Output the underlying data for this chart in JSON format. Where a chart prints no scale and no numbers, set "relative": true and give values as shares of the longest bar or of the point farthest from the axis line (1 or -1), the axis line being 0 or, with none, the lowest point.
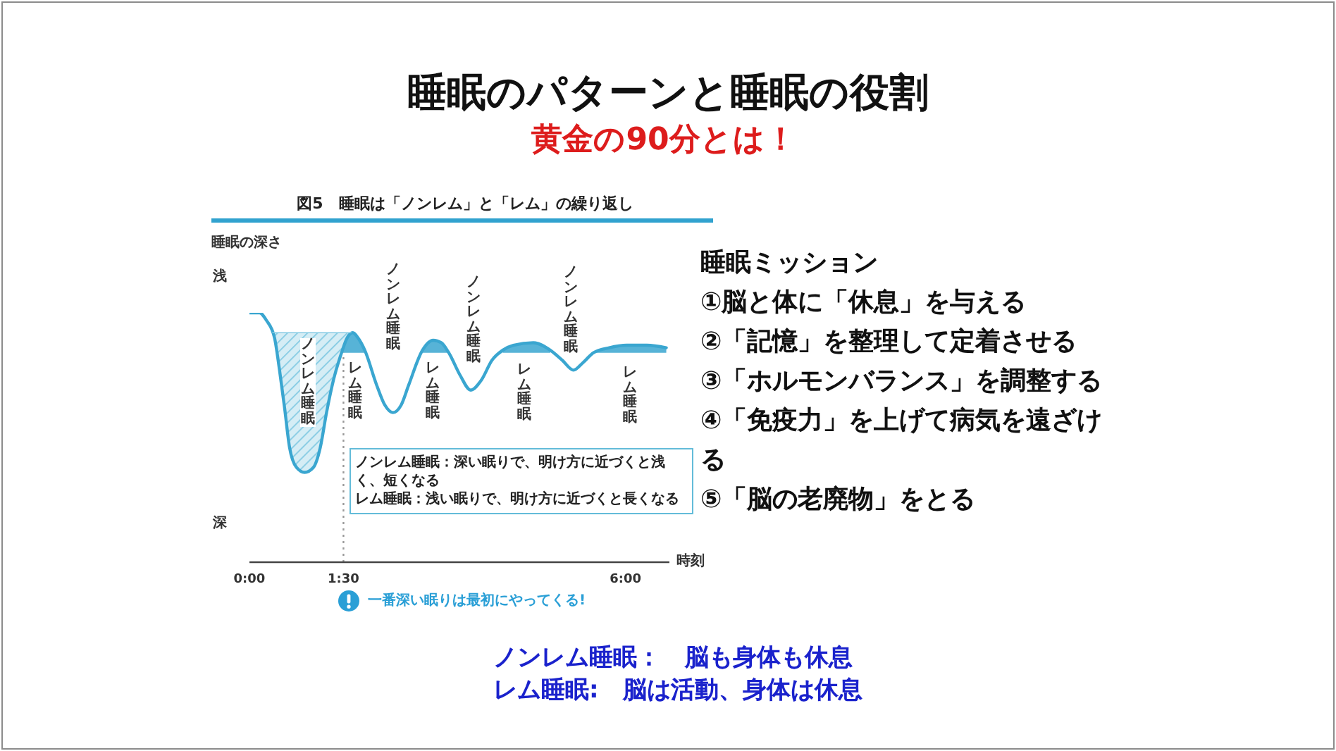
{
  "chart_data": {
    "type": "line",
    "title": "睡眠のパターンと睡眠の役割",
    "subtitle": "黄金の90分とは！",
    "xlabel": "時刻",
    "ylabel": "睡眠の深さ",
    "relative": true,
    "xlim": [
      0,
      6.7
    ],
    "xticks": [
      {
        "value": 0,
        "label": "0:00"
      },
      {
        "value": 1.5,
        "label": "1:30"
      },
      {
        "value": 6,
        "label": "6:00"
      }
    ],
    "series": [
      {
        "type": "line",
        "color": "#3aa6d0",
        "x": [
          0,
          0.16,
          0.27,
          0.4,
          0.48,
          0.56,
          0.64,
          0.75,
          0.88,
          1.02,
          1.13,
          1.23,
          1.34,
          1.47,
          1.56,
          1.65,
          1.73,
          1.84,
          2.03,
          2.16,
          2.29,
          2.42,
          2.54,
          2.76,
          2.93,
          3.06,
          3.18,
          3.36,
          3.53,
          3.7,
          3.87,
          4.04,
          4.21,
          4.53,
          4.8,
          4.99,
          5.17,
          5.32,
          5.49,
          5.74,
          6.02,
          6.34,
          6.65
        ],
        "values": [
          1.0,
          1.0,
          0.97,
          0.9,
          0.77,
          0.62,
          0.46,
          0.38,
          0.36,
          0.38,
          0.46,
          0.6,
          0.73,
          0.84,
          0.9,
          0.92,
          0.9,
          0.85,
          0.71,
          0.63,
          0.6,
          0.63,
          0.71,
          0.85,
          0.89,
          0.88,
          0.84,
          0.75,
          0.69,
          0.73,
          0.81,
          0.85,
          0.87,
          0.88,
          0.85,
          0.81,
          0.77,
          0.8,
          0.84,
          0.86,
          0.87,
          0.87,
          0.86
        ],
        "lower": [
          null,
          null,
          null,
          null,
          null,
          null,
          null,
          null,
          null,
          null,
          null,
          null,
          null,
          0.84,
          0.84,
          0.84,
          0.84,
          0.84,
          null,
          null,
          null,
          null,
          null,
          0.84,
          0.84,
          0.84,
          0.84,
          null,
          null,
          null,
          null,
          0.84,
          0.84,
          0.84,
          0.84,
          null,
          null,
          null,
          0.84,
          0.84,
          0.84,
          0.84,
          0.84
        ],
        "upper": [
          null,
          null,
          null,
          null,
          null,
          null,
          null,
          null,
          null,
          null,
          null,
          null,
          null,
          0.84,
          0.9,
          0.92,
          0.9,
          0.85,
          null,
          null,
          null,
          null,
          null,
          0.85,
          0.89,
          0.88,
          0.84,
          null,
          null,
          null,
          null,
          0.85,
          0.87,
          0.88,
          0.85,
          null,
          null,
          null,
          0.84,
          0.86,
          0.87,
          0.87,
          0.86
        ]
      },
      {
        "type": "line",
        "color": "#86cbe3",
        "x": [
          0.37,
          0.4,
          0.48,
          0.56,
          0.64,
          0.75,
          0.88,
          1.02,
          1.13,
          1.23,
          1.34,
          1.47,
          1.56,
          1.62
        ],
        "values": [
          0.92,
          0.92,
          0.92,
          0.92,
          0.92,
          0.92,
          0.92,
          0.92,
          0.92,
          0.92,
          0.92,
          0.92,
          0.92,
          0.92
        ],
        "lower": [
          0.92,
          0.9,
          0.77,
          0.62,
          0.46,
          0.38,
          0.36,
          0.38,
          0.46,
          0.6,
          0.73,
          0.84,
          0.9,
          0.92
        ],
        "upper": [
          0.92,
          0.92,
          0.92,
          0.92,
          0.92,
          0.92,
          0.92,
          0.92,
          0.92,
          0.92,
          0.92,
          0.92,
          0.92,
          0.92
        ]
      }
    ],
    "ref_lines": [
      {
        "axis": "x",
        "value": 1.5,
        "color": "#9a9a9a",
        "line_style": "dotted"
      }
    ],
    "annotations": [
      "図5　睡眠は「ノンレム」と「レム」の繰り返し",
      "浅",
      "深",
      "ノンレム睡眠",
      "レム睡眠",
      "ノンレム睡眠",
      "レム睡眠",
      "ノンレム睡眠",
      "レム睡眠",
      "ノンレム睡眠",
      "レム睡眠",
      "ノンレム睡眠：深い眠りで、明け方に近づくと浅く、短くなる",
      "レム睡眠：浅い眠りで、明け方に近づくと長くなる",
      "一番深い眠りは最初にやってくる!",
      "睡眠ミッション",
      "①脳と体に「休息」を与える",
      "②「記憶」を整理して定着させる",
      "③「ホルモンバランス」を調整する",
      "④「免疫力」を上げて病気を遠ざける",
      "⑤「脳の老廃物」をとる",
      "ノンレム睡眠：　脳も身体も休息",
      "レム睡眠:　脳は活動、身体は休息"
    ]
  }
}
